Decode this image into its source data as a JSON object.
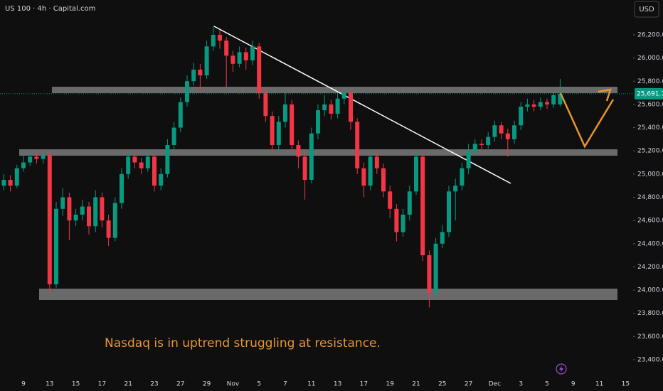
{
  "chart_data": {
    "type": "candlestick",
    "title": "US 100 · 4h · Capital.com",
    "currency": "USD",
    "annotation": "Nasdaq is in uptrend struggling at resistance.",
    "up_color": "#089981",
    "down_color": "#f23645",
    "ylim": [
      23265,
      26500
    ],
    "yticks": [
      {
        "value": 23400,
        "label": "23,400.0"
      },
      {
        "value": 23600,
        "label": "23,600.0"
      },
      {
        "value": 23800,
        "label": "23,800.0"
      },
      {
        "value": 24000,
        "label": "24,000.0"
      },
      {
        "value": 24200,
        "label": "24,200.0"
      },
      {
        "value": 24400,
        "label": "24,400.0"
      },
      {
        "value": 24600,
        "label": "24,600.0"
      },
      {
        "value": 24800,
        "label": "24,800.0"
      },
      {
        "value": 25000,
        "label": "25,000.0"
      },
      {
        "value": 25200,
        "label": "25,200.0"
      },
      {
        "value": 25400,
        "label": "25,400.0"
      },
      {
        "value": 25600,
        "label": "25,600.0"
      },
      {
        "value": 25800,
        "label": "25,800.0"
      },
      {
        "value": 26000,
        "label": "26,000.0"
      },
      {
        "value": 26200,
        "label": "26,200.0"
      }
    ],
    "last_price": {
      "value": 25691.7,
      "label": "25,691.7"
    },
    "categories": [
      null,
      null,
      null,
      "9",
      null,
      null,
      null,
      "13",
      null,
      null,
      null,
      "15",
      null,
      null,
      null,
      "17",
      null,
      null,
      null,
      "21",
      null,
      null,
      null,
      "23",
      null,
      null,
      null,
      "27",
      null,
      null,
      null,
      "29",
      null,
      null,
      null,
      "Nov",
      null,
      null,
      null,
      "5",
      null,
      null,
      null,
      "7",
      null,
      null,
      null,
      "11",
      null,
      null,
      null,
      "13",
      null,
      null,
      null,
      "17",
      null,
      null,
      null,
      "19",
      null,
      null,
      null,
      "21",
      null,
      null,
      null,
      "25",
      null,
      null,
      null,
      "27",
      null,
      null,
      null,
      "Dec",
      null,
      null,
      null,
      "3",
      null,
      null,
      null,
      "5",
      null,
      null,
      null,
      "9",
      null,
      null,
      null,
      "11",
      null,
      null,
      null,
      "15",
      null
    ],
    "ohlc": [
      [
        24900,
        25000,
        24860,
        24950
      ],
      [
        24950,
        24990,
        24850,
        24900
      ],
      [
        24900,
        25080,
        24880,
        25050
      ],
      [
        25050,
        25160,
        25020,
        25100
      ],
      [
        25100,
        25190,
        25070,
        25150
      ],
      [
        25150,
        25200,
        25090,
        25130
      ],
      [
        25130,
        25200,
        25090,
        25160
      ],
      [
        25160,
        25200,
        23980,
        24050
      ],
      [
        24050,
        24760,
        24020,
        24700
      ],
      [
        24700,
        24880,
        24640,
        24800
      ],
      [
        24800,
        24840,
        24430,
        24600
      ],
      [
        24600,
        24700,
        24550,
        24650
      ],
      [
        24650,
        24780,
        24600,
        24720
      ],
      [
        24720,
        24760,
        24480,
        24550
      ],
      [
        24550,
        24860,
        24500,
        24800
      ],
      [
        24800,
        24840,
        24540,
        24600
      ],
      [
        24600,
        24650,
        24380,
        24450
      ],
      [
        24450,
        24800,
        24420,
        24750
      ],
      [
        24750,
        25050,
        24700,
        25000
      ],
      [
        25000,
        25200,
        24960,
        25150
      ],
      [
        25150,
        25190,
        25050,
        25100
      ],
      [
        25100,
        25140,
        25000,
        25050
      ],
      [
        25050,
        25200,
        25020,
        25150
      ],
      [
        25150,
        25170,
        24850,
        24900
      ],
      [
        24900,
        25050,
        24860,
        25000
      ],
      [
        25000,
        25300,
        24970,
        25250
      ],
      [
        25250,
        25450,
        25200,
        25400
      ],
      [
        25400,
        25660,
        25360,
        25620
      ],
      [
        25620,
        25850,
        25580,
        25800
      ],
      [
        25800,
        25960,
        25760,
        25900
      ],
      [
        25900,
        25950,
        25700,
        25850
      ],
      [
        25850,
        26150,
        25820,
        26100
      ],
      [
        26100,
        26280,
        26060,
        26200
      ],
      [
        26200,
        26240,
        26080,
        26150
      ],
      [
        26150,
        26180,
        25750,
        26020
      ],
      [
        26020,
        26060,
        25880,
        25950
      ],
      [
        25950,
        26100,
        25920,
        26050
      ],
      [
        26050,
        26090,
        25900,
        25980
      ],
      [
        25980,
        26150,
        25940,
        26100
      ],
      [
        26100,
        26130,
        25650,
        25700
      ],
      [
        25700,
        25740,
        25450,
        25500
      ],
      [
        25500,
        25540,
        25180,
        25250
      ],
      [
        25250,
        25500,
        25200,
        25450
      ],
      [
        25450,
        25700,
        25400,
        25600
      ],
      [
        25600,
        25640,
        25200,
        25250
      ],
      [
        25250,
        25290,
        25050,
        25150
      ],
      [
        25150,
        25200,
        24780,
        24950
      ],
      [
        24950,
        25400,
        24920,
        25350
      ],
      [
        25350,
        25600,
        25300,
        25550
      ],
      [
        25550,
        25680,
        25500,
        25600
      ],
      [
        25600,
        25640,
        25470,
        25520
      ],
      [
        25520,
        25700,
        25480,
        25650
      ],
      [
        25650,
        25730,
        25600,
        25700
      ],
      [
        25700,
        25720,
        25380,
        25450
      ],
      [
        25450,
        25480,
        25000,
        25050
      ],
      [
        25050,
        25100,
        24800,
        24900
      ],
      [
        24900,
        25200,
        24860,
        25150
      ],
      [
        25150,
        25190,
        25000,
        25050
      ],
      [
        25050,
        25090,
        24800,
        24850
      ],
      [
        24850,
        24900,
        24620,
        24700
      ],
      [
        24700,
        24740,
        24420,
        24500
      ],
      [
        24500,
        24700,
        24460,
        24650
      ],
      [
        24650,
        24900,
        24600,
        24850
      ],
      [
        24850,
        25200,
        24820,
        25150
      ],
      [
        25150,
        25190,
        24250,
        24300
      ],
      [
        24300,
        24340,
        23850,
        23980
      ],
      [
        23980,
        24450,
        23940,
        24400
      ],
      [
        24400,
        24560,
        24360,
        24500
      ],
      [
        24500,
        24900,
        24460,
        24850
      ],
      [
        24850,
        24960,
        24600,
        24900
      ],
      [
        24900,
        25100,
        24860,
        25050
      ],
      [
        25050,
        25260,
        25000,
        25200
      ],
      [
        25200,
        25300,
        25160,
        25260
      ],
      [
        25260,
        25300,
        25210,
        25250
      ],
      [
        25250,
        25360,
        25220,
        25320
      ],
      [
        25320,
        25460,
        25280,
        25420
      ],
      [
        25420,
        25450,
        25300,
        25350
      ],
      [
        25350,
        25390,
        25150,
        25300
      ],
      [
        25300,
        25460,
        25260,
        25420
      ],
      [
        25420,
        25620,
        25380,
        25580
      ],
      [
        25580,
        25650,
        25540,
        25600
      ],
      [
        25600,
        25640,
        25540,
        25580
      ],
      [
        25580,
        25660,
        25550,
        25620
      ],
      [
        25620,
        25650,
        25560,
        25600
      ],
      [
        25600,
        25720,
        25570,
        25680
      ],
      [
        25600,
        25820,
        25580,
        25691.7
      ],
      null,
      null,
      null,
      null,
      null,
      null,
      null,
      null,
      null,
      null,
      null
    ]
  }
}
